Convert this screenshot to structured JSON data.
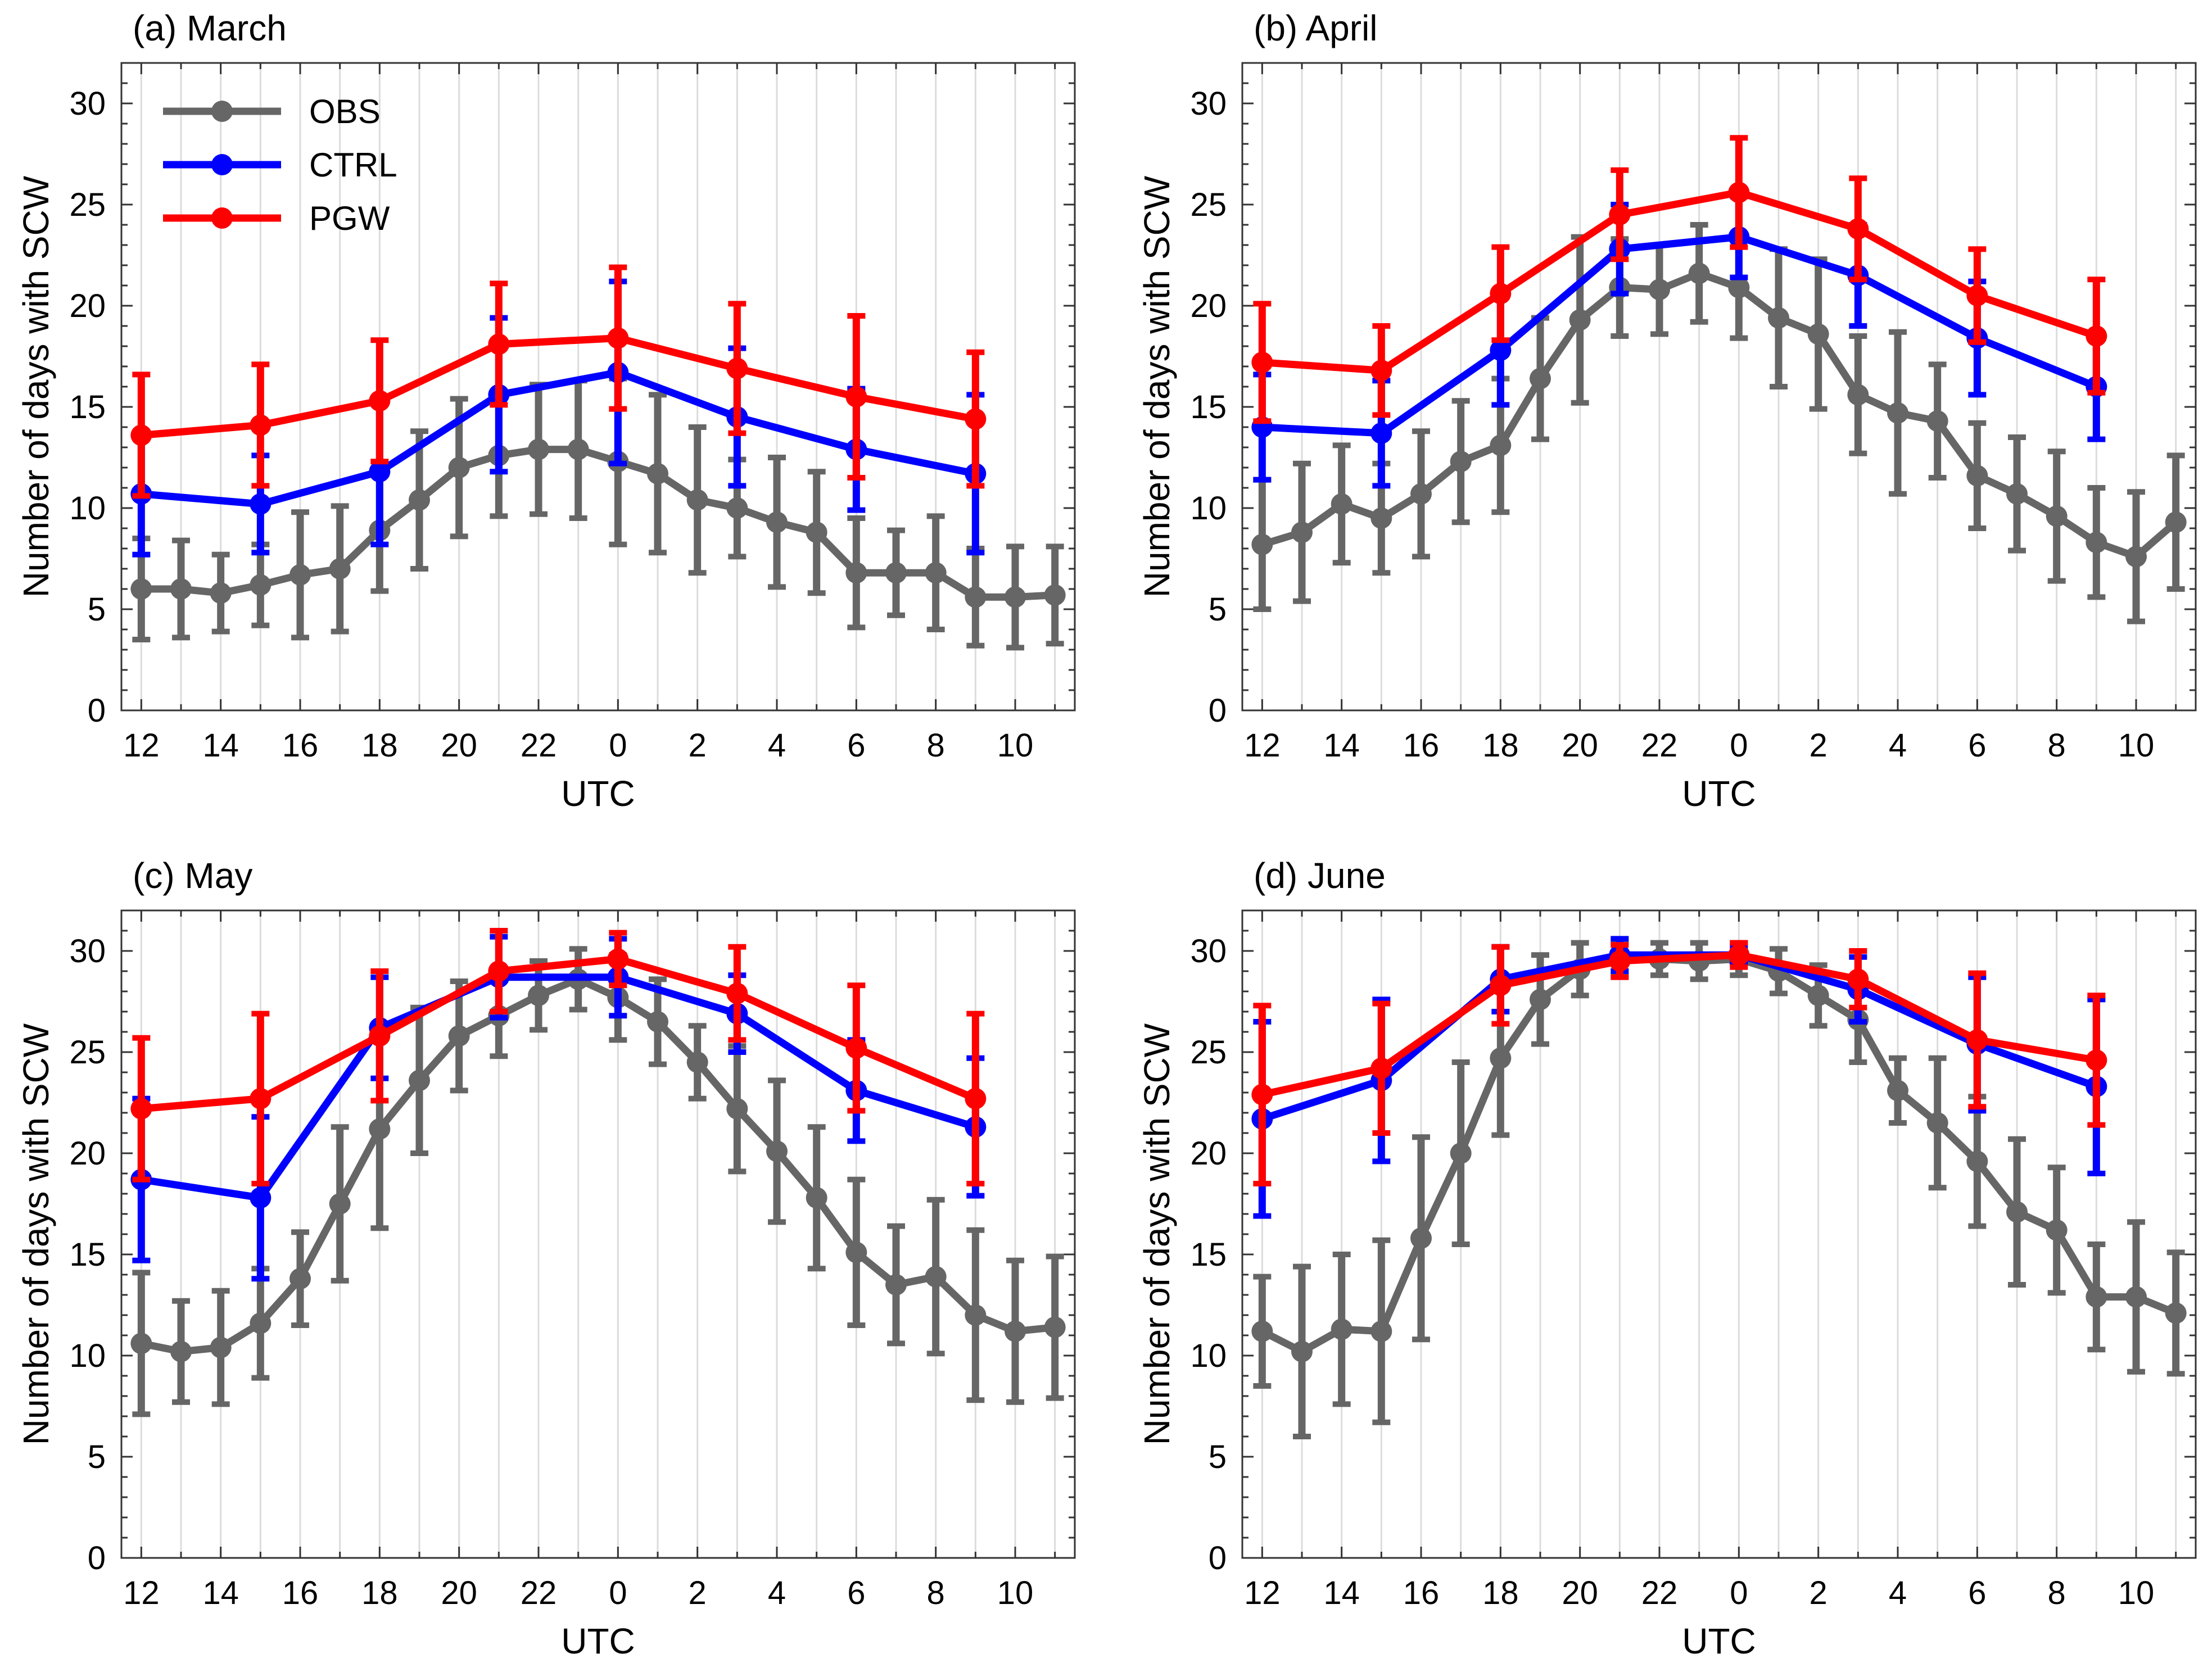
{
  "colors": {
    "OBS": "#666666",
    "CTRL": "#0000ff",
    "PGW": "#ff0000"
  },
  "legend": [
    {
      "key": "OBS",
      "label": "OBS"
    },
    {
      "key": "CTRL",
      "label": "CTRL"
    },
    {
      "key": "PGW",
      "label": "PGW"
    }
  ],
  "chart_data": [
    {
      "type": "line",
      "title": "(a) March",
      "xlabel": "UTC",
      "ylabel": "Number of days with SCW",
      "ylim": [
        0,
        32
      ],
      "yticks": [
        0,
        5,
        10,
        15,
        20,
        25,
        30
      ],
      "x_tick_labels": [
        "12",
        "14",
        "16",
        "18",
        "20",
        "22",
        "0",
        "2",
        "4",
        "6",
        "8",
        "10"
      ],
      "series": [
        {
          "name": "OBS",
          "x": [
            12,
            13,
            14,
            15,
            16,
            17,
            18,
            19,
            20,
            21,
            22,
            23,
            0,
            1,
            2,
            3,
            4,
            5,
            6,
            7,
            8,
            9,
            10,
            11
          ],
          "values": [
            6.0,
            6.0,
            5.8,
            6.2,
            6.7,
            7.0,
            8.9,
            10.4,
            12.0,
            12.6,
            12.9,
            12.9,
            12.3,
            11.7,
            10.4,
            10.0,
            9.3,
            8.8,
            6.8,
            6.8,
            6.8,
            5.6,
            5.6,
            5.7
          ],
          "err": [
            2.5,
            2.4,
            1.9,
            2.0,
            3.1,
            3.1,
            3.0,
            3.4,
            3.4,
            3.0,
            3.2,
            3.4,
            4.1,
            3.9,
            3.6,
            2.4,
            3.2,
            3.0,
            2.7,
            2.1,
            2.8,
            2.4,
            2.5,
            2.4
          ]
        },
        {
          "name": "CTRL",
          "x": [
            12,
            15,
            18,
            21,
            0,
            3,
            6,
            9
          ],
          "values": [
            10.7,
            10.2,
            11.8,
            15.6,
            16.7,
            14.5,
            12.9,
            11.7
          ],
          "err": [
            3.0,
            2.4,
            3.6,
            3.8,
            4.5,
            3.4,
            3.0,
            3.9
          ]
        },
        {
          "name": "PGW",
          "x": [
            12,
            15,
            18,
            21,
            0,
            3,
            6,
            9
          ],
          "values": [
            13.6,
            14.1,
            15.3,
            18.1,
            18.4,
            16.9,
            15.5,
            14.4
          ],
          "err": [
            3.0,
            3.0,
            3.0,
            3.0,
            3.5,
            3.2,
            4.0,
            3.3
          ]
        }
      ]
    },
    {
      "type": "line",
      "title": "(b) April",
      "xlabel": "UTC",
      "ylabel": "Number of days with SCW",
      "ylim": [
        0,
        32
      ],
      "yticks": [
        0,
        5,
        10,
        15,
        20,
        25,
        30
      ],
      "x_tick_labels": [
        "12",
        "14",
        "16",
        "18",
        "20",
        "22",
        "0",
        "2",
        "4",
        "6",
        "8",
        "10"
      ],
      "series": [
        {
          "name": "OBS",
          "x": [
            12,
            13,
            14,
            15,
            16,
            17,
            18,
            19,
            20,
            21,
            22,
            23,
            0,
            1,
            2,
            3,
            4,
            5,
            6,
            7,
            8,
            9,
            10,
            11
          ],
          "values": [
            8.2,
            8.8,
            10.2,
            9.5,
            10.7,
            12.3,
            13.1,
            16.4,
            19.3,
            20.9,
            20.8,
            21.6,
            20.9,
            19.4,
            18.6,
            15.6,
            14.7,
            14.3,
            11.6,
            10.7,
            9.6,
            8.3,
            7.6,
            9.3
          ],
          "err": [
            3.2,
            3.4,
            2.9,
            2.7,
            3.1,
            3.0,
            3.3,
            3.0,
            4.1,
            2.4,
            2.2,
            2.4,
            2.5,
            3.4,
            3.7,
            2.9,
            4.0,
            2.8,
            2.6,
            2.8,
            3.2,
            2.7,
            3.2,
            3.3
          ]
        },
        {
          "name": "CTRL",
          "x": [
            12,
            15,
            18,
            21,
            0,
            3,
            6,
            9
          ],
          "values": [
            14.0,
            13.7,
            17.8,
            22.8,
            23.4,
            21.5,
            18.4,
            16.0
          ],
          "err": [
            2.6,
            2.6,
            2.7,
            2.2,
            2.0,
            2.5,
            2.8,
            2.6
          ]
        },
        {
          "name": "PGW",
          "x": [
            12,
            15,
            18,
            21,
            0,
            3,
            6,
            9
          ],
          "values": [
            17.2,
            16.8,
            20.6,
            24.5,
            25.6,
            23.8,
            20.5,
            18.5
          ],
          "err": [
            2.9,
            2.2,
            2.3,
            2.2,
            2.7,
            2.5,
            2.3,
            2.8
          ]
        }
      ]
    },
    {
      "type": "line",
      "title": "(c) May",
      "xlabel": "UTC",
      "ylabel": "Number of days with SCW",
      "ylim": [
        0,
        32
      ],
      "yticks": [
        0,
        5,
        10,
        15,
        20,
        25,
        30
      ],
      "x_tick_labels": [
        "12",
        "14",
        "16",
        "18",
        "20",
        "22",
        "0",
        "2",
        "4",
        "6",
        "8",
        "10"
      ],
      "series": [
        {
          "name": "OBS",
          "x": [
            12,
            13,
            14,
            15,
            16,
            17,
            18,
            19,
            20,
            21,
            22,
            23,
            0,
            1,
            2,
            3,
            4,
            5,
            6,
            7,
            8,
            9,
            10,
            11
          ],
          "values": [
            10.6,
            10.2,
            10.4,
            11.6,
            13.8,
            17.5,
            21.2,
            23.6,
            25.8,
            26.8,
            27.8,
            28.6,
            27.7,
            26.5,
            24.5,
            22.2,
            20.1,
            17.8,
            15.1,
            13.5,
            13.9,
            12.0,
            11.2,
            11.4
          ],
          "err": [
            3.5,
            2.5,
            2.8,
            2.7,
            2.3,
            3.8,
            4.9,
            3.6,
            2.7,
            2.0,
            1.7,
            1.5,
            2.1,
            2.1,
            1.8,
            3.1,
            3.5,
            3.5,
            3.6,
            2.9,
            3.8,
            4.2,
            3.5,
            3.5
          ]
        },
        {
          "name": "CTRL",
          "x": [
            12,
            15,
            18,
            21,
            0,
            3,
            6,
            9
          ],
          "values": [
            18.7,
            17.8,
            26.2,
            28.7,
            28.7,
            26.9,
            23.1,
            21.3
          ],
          "err": [
            4.0,
            4.0,
            2.5,
            2.0,
            1.9,
            1.9,
            2.5,
            3.4
          ]
        },
        {
          "name": "PGW",
          "x": [
            12,
            15,
            18,
            21,
            0,
            3,
            6,
            9
          ],
          "values": [
            22.2,
            22.7,
            25.8,
            29.0,
            29.6,
            27.9,
            25.2,
            22.7
          ],
          "err": [
            3.5,
            4.2,
            3.2,
            2.0,
            1.3,
            2.3,
            3.1,
            4.2
          ]
        }
      ]
    },
    {
      "type": "line",
      "title": "(d) June",
      "xlabel": "UTC",
      "ylabel": "Number of days with SCW",
      "ylim": [
        0,
        32
      ],
      "yticks": [
        0,
        5,
        10,
        15,
        20,
        25,
        30
      ],
      "x_tick_labels": [
        "12",
        "14",
        "16",
        "18",
        "20",
        "22",
        "0",
        "2",
        "4",
        "6",
        "8",
        "10"
      ],
      "series": [
        {
          "name": "OBS",
          "x": [
            12,
            13,
            14,
            15,
            16,
            17,
            18,
            19,
            20,
            21,
            22,
            23,
            0,
            1,
            2,
            3,
            4,
            5,
            6,
            7,
            8,
            9,
            10,
            11
          ],
          "values": [
            11.2,
            10.2,
            11.3,
            11.2,
            15.8,
            20.0,
            24.7,
            27.6,
            29.1,
            29.6,
            29.6,
            29.5,
            29.6,
            29.0,
            27.8,
            26.6,
            23.1,
            21.5,
            19.6,
            17.1,
            16.2,
            12.9,
            12.9,
            12.1
          ],
          "err": [
            2.7,
            4.2,
            3.7,
            4.5,
            5.0,
            4.5,
            3.8,
            2.2,
            1.3,
            0.8,
            0.8,
            0.9,
            0.8,
            1.1,
            1.5,
            2.1,
            1.6,
            3.2,
            3.2,
            3.6,
            3.1,
            2.6,
            3.7,
            3.0
          ]
        },
        {
          "name": "CTRL",
          "x": [
            12,
            15,
            18,
            21,
            0,
            3,
            6,
            9
          ],
          "values": [
            21.7,
            23.6,
            28.6,
            29.8,
            29.8,
            28.1,
            25.4,
            23.3
          ],
          "err": [
            4.8,
            4.0,
            1.6,
            0.8,
            0.4,
            1.6,
            3.3,
            4.3
          ]
        },
        {
          "name": "PGW",
          "x": [
            12,
            15,
            18,
            21,
            0,
            3,
            6,
            9
          ],
          "values": [
            22.9,
            24.2,
            28.3,
            29.5,
            29.8,
            28.6,
            25.6,
            24.6
          ],
          "err": [
            4.4,
            3.2,
            1.9,
            0.8,
            0.6,
            1.4,
            3.3,
            3.2
          ]
        }
      ]
    }
  ]
}
